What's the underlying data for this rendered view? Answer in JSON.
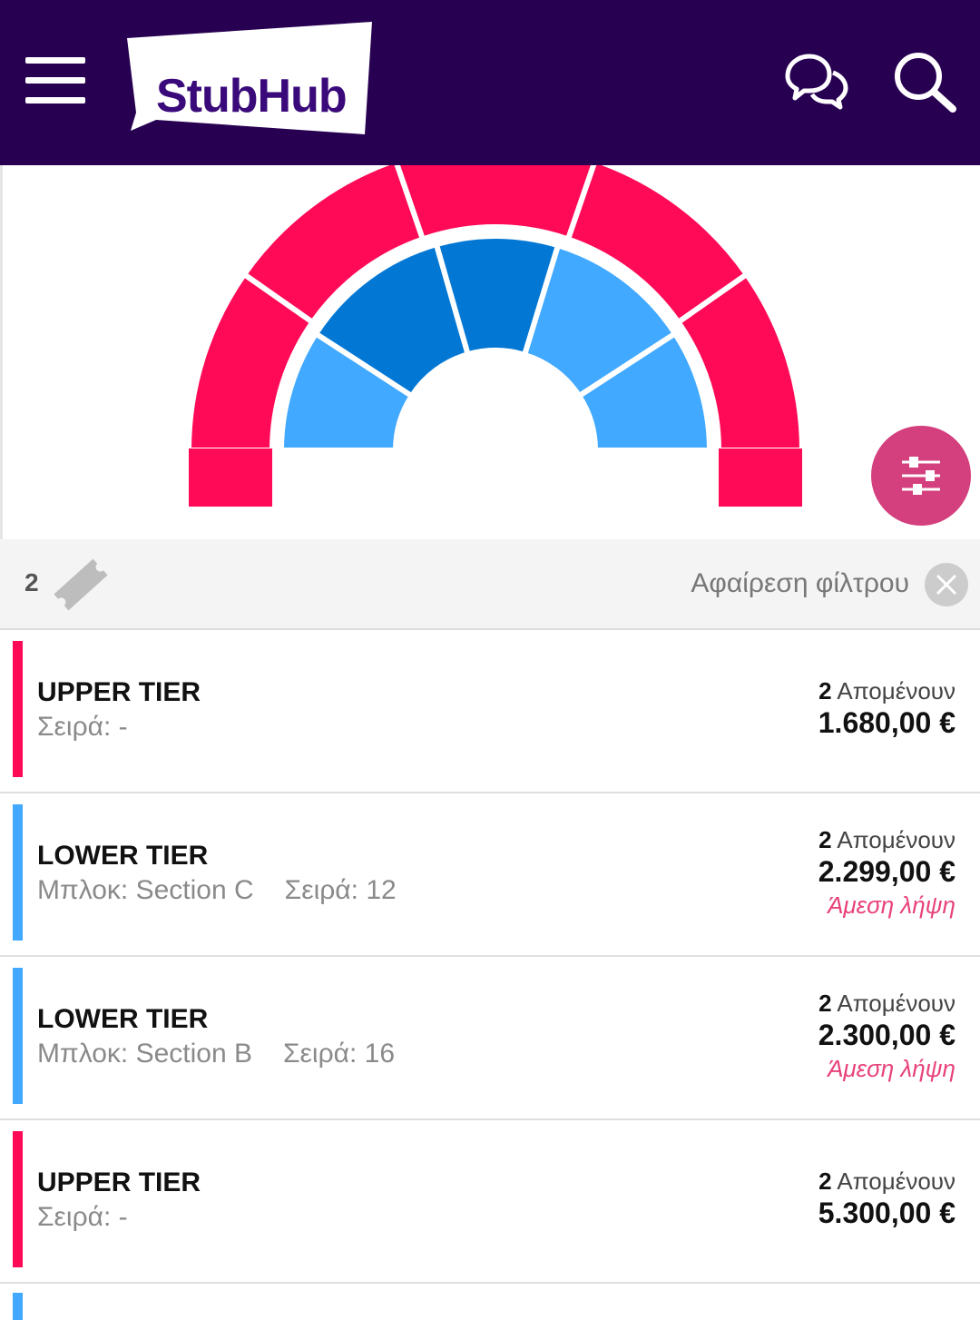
{
  "header": {
    "logo_text": "StubHub",
    "menu_icon": "hamburger-menu-icon",
    "chat_icon": "chat-bubbles-icon",
    "search_icon": "search-icon",
    "background": "#270052"
  },
  "map": {
    "upper_color": "#ff0a57",
    "lower_dark_color": "#0277d4",
    "lower_light_color": "#41a9ff",
    "filter_icon": "sliders-icon"
  },
  "filter_bar": {
    "quantity": "2",
    "ticket_icon": "ticket-icon",
    "remove_label": "Αφαίρεση φίλτρου",
    "remove_icon": "close-icon"
  },
  "listings": [
    {
      "title": "UPPER TIER",
      "block": "",
      "row": "Σειρά: -",
      "remaining_count": "2",
      "remaining_label": "Απομένουν",
      "price": "1.680,00 €",
      "instant": "",
      "color": "#ff0a57"
    },
    {
      "title": "LOWER TIER",
      "block": "Μπλοκ: Section C",
      "row": "Σειρά: 12",
      "remaining_count": "2",
      "remaining_label": "Απομένουν",
      "price": "2.299,00 €",
      "instant": "Άμεση λήψη",
      "color": "#41a9ff"
    },
    {
      "title": "LOWER TIER",
      "block": "Μπλοκ: Section B",
      "row": "Σειρά: 16",
      "remaining_count": "2",
      "remaining_label": "Απομένουν",
      "price": "2.300,00 €",
      "instant": "Άμεση λήψη",
      "color": "#41a9ff"
    },
    {
      "title": "UPPER TIER",
      "block": "",
      "row": "Σειρά: -",
      "remaining_count": "2",
      "remaining_label": "Απομένουν",
      "price": "5.300,00 €",
      "instant": "",
      "color": "#ff0a57"
    }
  ]
}
